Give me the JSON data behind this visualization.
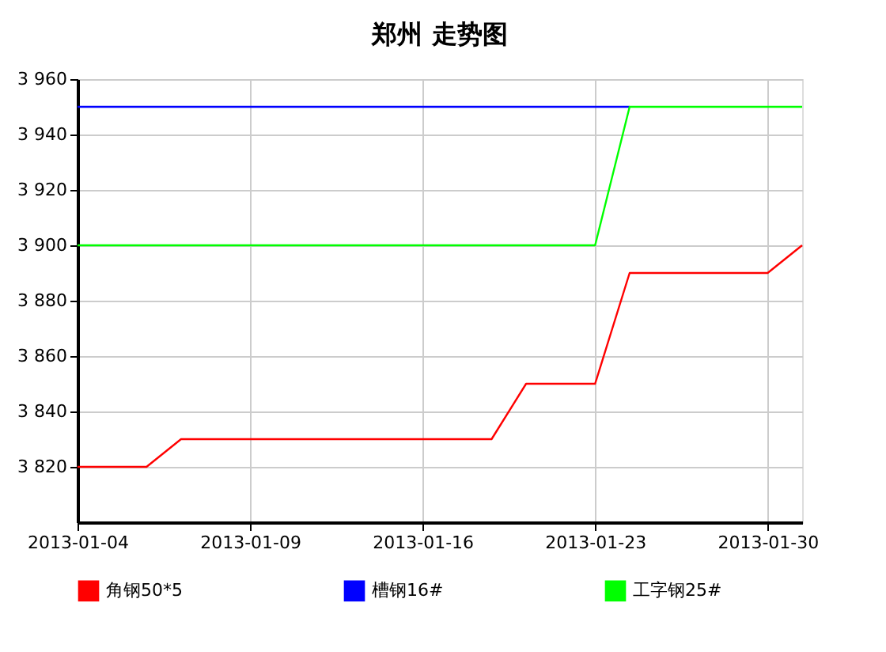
{
  "chart_data": {
    "type": "line",
    "title": "郑州 走势图",
    "categories": [
      "2013-01-04",
      null,
      null,
      null,
      null,
      "2013-01-09",
      null,
      null,
      null,
      null,
      "2013-01-16",
      null,
      null,
      null,
      null,
      "2013-01-23",
      null,
      null,
      null,
      null,
      "2013-01-30",
      null
    ],
    "series": [
      {
        "name": "角钢50*5",
        "color": "#ff0000",
        "values": [
          3820,
          3820,
          3820,
          3830,
          3830,
          3830,
          3830,
          3830,
          3830,
          3830,
          3830,
          3830,
          3830,
          3850,
          3850,
          3850,
          3890,
          3890,
          3890,
          3890,
          3890,
          3900
        ]
      },
      {
        "name": "槽钢16#",
        "color": "#0000ff",
        "values": [
          3950,
          3950,
          3950,
          3950,
          3950,
          3950,
          3950,
          3950,
          3950,
          3950,
          3950,
          3950,
          3950,
          3950,
          3950,
          3950,
          3950,
          null,
          null,
          null,
          null,
          null
        ]
      },
      {
        "name": "工字钢25#",
        "color": "#00ff00",
        "values": [
          3900,
          3900,
          3900,
          3900,
          3900,
          3900,
          3900,
          3900,
          3900,
          3900,
          3900,
          3900,
          3900,
          3900,
          3900,
          3900,
          3950,
          3950,
          3950,
          3950,
          3950,
          3950
        ]
      }
    ],
    "ylim": [
      3800,
      3960
    ],
    "yticks": [
      {
        "value": 3820,
        "label": "3 820"
      },
      {
        "value": 3840,
        "label": "3 840"
      },
      {
        "value": 3860,
        "label": "3 860"
      },
      {
        "value": 3880,
        "label": "3 880"
      },
      {
        "value": 3900,
        "label": "3 900"
      },
      {
        "value": 3920,
        "label": "3 920"
      },
      {
        "value": 3940,
        "label": "3 940"
      },
      {
        "value": 3960,
        "label": "3 960"
      }
    ],
    "grid": true,
    "legend": "bottom",
    "marker": "none",
    "line_style": "solid"
  }
}
